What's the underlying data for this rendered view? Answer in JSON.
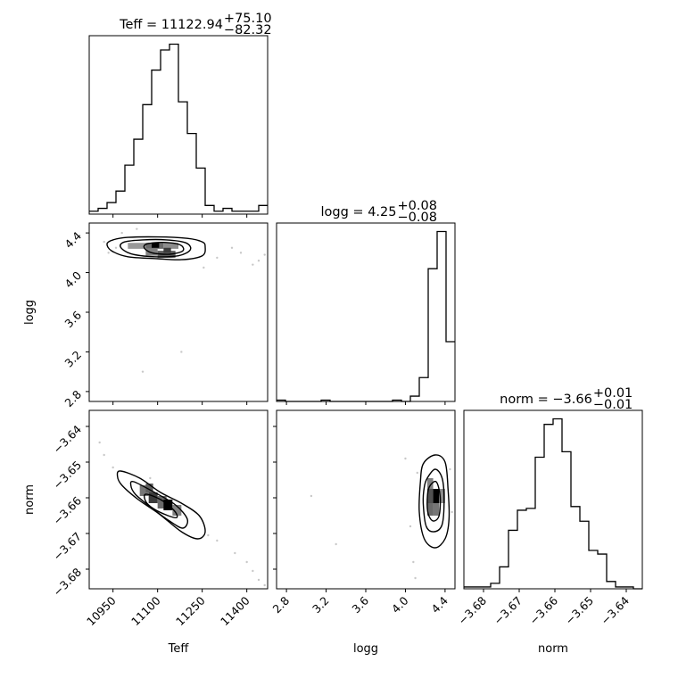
{
  "chart_data": {
    "type": "corner",
    "parameters": [
      "Teff",
      "logg",
      "norm"
    ],
    "titles": [
      {
        "param": "Teff",
        "prefix": "Teff = 11122.94",
        "plus": "+75.10",
        "minus": "−82.32"
      },
      {
        "param": "logg",
        "prefix": "logg = 4.25",
        "plus": "+0.08",
        "minus": "−0.08"
      },
      {
        "param": "norm",
        "prefix": "norm = −3.66",
        "plus": "+0.01",
        "minus": "−0.01"
      }
    ],
    "ranges": {
      "Teff": [
        10870,
        11470
      ],
      "logg": [
        2.7,
        4.5
      ],
      "norm": [
        -3.6855,
        -3.6355
      ]
    },
    "ticks": {
      "Teff": {
        "values": [
          10950,
          11100,
          11250,
          11400
        ],
        "labels": [
          "10950",
          "11100",
          "11250",
          "11400"
        ]
      },
      "logg": {
        "values": [
          2.8,
          3.2,
          3.6,
          4.0,
          4.4
        ],
        "labels": [
          "2.8",
          "3.2",
          "3.6",
          "4.0",
          "4.4"
        ]
      },
      "norm": {
        "values": [
          -3.68,
          -3.67,
          -3.66,
          -3.65,
          -3.64
        ],
        "labels": [
          "−3.68",
          "−3.67",
          "−3.66",
          "−3.65",
          "−3.64"
        ]
      }
    },
    "histograms": {
      "Teff": {
        "edges": [
          10870,
          10900,
          10930,
          10960,
          10990,
          11020,
          11050,
          11080,
          11110,
          11140,
          11170,
          11200,
          11230,
          11260,
          11290,
          11320,
          11350,
          11380,
          11410,
          11440,
          11470
        ],
        "counts": [
          1,
          2,
          4,
          8,
          17,
          26,
          38,
          50,
          57,
          59,
          39,
          28,
          16,
          3,
          1,
          2,
          1,
          1,
          1,
          3
        ]
      },
      "logg": {
        "edges": [
          2.7,
          2.79,
          2.88,
          2.97,
          3.06,
          3.15,
          3.24,
          3.33,
          3.42,
          3.51,
          3.6,
          3.69,
          3.78,
          3.87,
          3.96,
          4.05,
          4.14,
          4.23,
          4.32,
          4.41,
          4.5
        ],
        "counts": [
          1,
          0,
          0,
          0,
          0,
          1,
          0,
          0,
          0,
          0,
          0,
          0,
          0,
          1,
          0,
          4,
          18,
          100,
          128,
          45
        ]
      },
      "norm": {
        "edges": [
          -3.6855,
          -3.683,
          -3.6805,
          -3.678,
          -3.6755,
          -3.673,
          -3.6705,
          -3.668,
          -3.6655,
          -3.663,
          -3.6605,
          -3.658,
          -3.6555,
          -3.653,
          -3.6505,
          -3.648,
          -3.6455,
          -3.643,
          -3.6405,
          -3.638,
          -3.6355
        ],
        "counts": [
          1,
          1,
          1,
          3,
          12,
          32,
          43,
          44,
          72,
          90,
          93,
          75,
          45,
          37,
          21,
          19,
          4,
          1,
          1,
          0
        ]
      }
    },
    "hist2d": [
      {
        "x": "Teff",
        "y": "logg",
        "cells": [
          {
            "x": [
              11000,
              11060
            ],
            "y": [
              4.24,
              4.3
            ],
            "level": 0.35
          },
          {
            "x": [
              11060,
              11120
            ],
            "y": [
              4.24,
              4.3
            ],
            "level": 0.55
          },
          {
            "x": [
              11120,
              11170
            ],
            "y": [
              4.24,
              4.3
            ],
            "level": 0.4
          },
          {
            "x": [
              11060,
              11100
            ],
            "y": [
              4.17,
              4.24
            ],
            "level": 0.45
          },
          {
            "x": [
              11100,
              11160
            ],
            "y": [
              4.15,
              4.22
            ],
            "level": 0.6
          },
          {
            "x": [
              11080,
              11105
            ],
            "y": [
              4.25,
              4.3
            ],
            "level": 1.0
          },
          {
            "x": [
              11120,
              11145
            ],
            "y": [
              4.2,
              4.25
            ],
            "level": 0.75
          }
        ],
        "contours": [
          [
            [
              10950,
              4.33
            ],
            [
              11000,
              4.355
            ],
            [
              11100,
              4.36
            ],
            [
              11200,
              4.345
            ],
            [
              11250,
              4.31
            ],
            [
              11260,
              4.26
            ],
            [
              11250,
              4.17
            ],
            [
              11180,
              4.13
            ],
            [
              11100,
              4.14
            ],
            [
              11000,
              4.16
            ],
            [
              10945,
              4.22
            ],
            [
              10930,
              4.29
            ]
          ],
          [
            [
              10990,
              4.31
            ],
            [
              11050,
              4.33
            ],
            [
              11130,
              4.33
            ],
            [
              11195,
              4.3
            ],
            [
              11210,
              4.23
            ],
            [
              11170,
              4.17
            ],
            [
              11090,
              4.16
            ],
            [
              11010,
              4.19
            ],
            [
              10975,
              4.26
            ]
          ],
          [
            [
              11065,
              4.29
            ],
            [
              11120,
              4.305
            ],
            [
              11175,
              4.28
            ],
            [
              11185,
              4.22
            ],
            [
              11140,
              4.185
            ],
            [
              11080,
              4.2
            ],
            [
              11055,
              4.25
            ]
          ]
        ],
        "points": [
          [
            10920,
            4.31
          ],
          [
            10935,
            4.2
          ],
          [
            10960,
            4.25
          ],
          [
            11050,
            3.0
          ],
          [
            11180,
            3.2
          ],
          [
            11255,
            4.05
          ],
          [
            11300,
            4.15
          ],
          [
            11350,
            4.25
          ],
          [
            11380,
            4.2
          ],
          [
            11420,
            4.08
          ],
          [
            11440,
            4.12
          ],
          [
            11460,
            4.18
          ],
          [
            10980,
            4.4
          ],
          [
            11240,
            4.32
          ],
          [
            11030,
            4.44
          ]
        ]
      },
      {
        "x": "Teff",
        "y": "norm",
        "cells": [
          {
            "x": [
              11040,
              11070
            ],
            "y": [
              -3.6595,
              -3.6565
            ],
            "level": 0.5
          },
          {
            "x": [
              11070,
              11100
            ],
            "y": [
              -3.6615,
              -3.6585
            ],
            "level": 0.75
          },
          {
            "x": [
              11100,
              11130
            ],
            "y": [
              -3.663,
              -3.6595
            ],
            "level": 0.55
          },
          {
            "x": [
              11120,
              11150
            ],
            "y": [
              -3.6635,
              -3.6605
            ],
            "level": 1.0
          },
          {
            "x": [
              11150,
              11180
            ],
            "y": [
              -3.665,
              -3.662
            ],
            "level": 0.45
          },
          {
            "x": [
              11060,
              11085
            ],
            "y": [
              -3.6585,
              -3.656
            ],
            "level": 0.6
          }
        ],
        "contours": [
          [
            [
              10975,
              -3.6525
            ],
            [
              11040,
              -3.6545
            ],
            [
              11110,
              -3.6585
            ],
            [
              11180,
              -3.6615
            ],
            [
              11240,
              -3.665
            ],
            [
              11260,
              -3.6695
            ],
            [
              11235,
              -3.6715
            ],
            [
              11180,
              -3.6695
            ],
            [
              11105,
              -3.6645
            ],
            [
              11035,
              -3.6605
            ],
            [
              10980,
              -3.6565
            ],
            [
              10965,
              -3.654
            ]
          ],
          [
            [
              11020,
              -3.6555
            ],
            [
              11090,
              -3.6585
            ],
            [
              11160,
              -3.662
            ],
            [
              11200,
              -3.666
            ],
            [
              11185,
              -3.6685
            ],
            [
              11140,
              -3.6665
            ],
            [
              11075,
              -3.6625
            ],
            [
              11025,
              -3.659
            ],
            [
              11010,
              -3.6565
            ]
          ],
          [
            [
              11060,
              -3.659
            ],
            [
              11110,
              -3.6605
            ],
            [
              11155,
              -3.6635
            ],
            [
              11165,
              -3.6655
            ],
            [
              11135,
              -3.665
            ],
            [
              11085,
              -3.663
            ],
            [
              11060,
              -3.661
            ]
          ]
        ],
        "points": [
          [
            10905,
            -3.6445
          ],
          [
            10920,
            -3.648
          ],
          [
            10950,
            -3.6515
          ],
          [
            11270,
            -3.6705
          ],
          [
            11300,
            -3.672
          ],
          [
            11360,
            -3.6755
          ],
          [
            11400,
            -3.678
          ],
          [
            11420,
            -3.6805
          ],
          [
            11440,
            -3.683
          ],
          [
            11460,
            -3.6845
          ],
          [
            11075,
            -3.6545
          ]
        ]
      },
      {
        "x": "logg",
        "y": "norm",
        "cells": [
          {
            "x": [
              4.22,
              4.28
            ],
            "y": [
              -3.6575,
              -3.6545
            ],
            "level": 0.45
          },
          {
            "x": [
              4.22,
              4.28
            ],
            "y": [
              -3.6615,
              -3.6575
            ],
            "level": 0.65
          },
          {
            "x": [
              4.28,
              4.34
            ],
            "y": [
              -3.6615,
              -3.6575
            ],
            "level": 1.0
          },
          {
            "x": [
              4.22,
              4.28
            ],
            "y": [
              -3.665,
              -3.6615
            ],
            "level": 0.55
          },
          {
            "x": [
              4.28,
              4.34
            ],
            "y": [
              -3.665,
              -3.6615
            ],
            "level": 0.5
          },
          {
            "x": [
              4.34,
              4.4
            ],
            "y": [
              -3.6615,
              -3.6575
            ],
            "level": 0.4
          }
        ],
        "contours": [
          [
            [
              4.18,
              -3.6505
            ],
            [
              4.3,
              -3.648
            ],
            [
              4.4,
              -3.65
            ],
            [
              4.43,
              -3.6575
            ],
            [
              4.44,
              -3.666
            ],
            [
              4.4,
              -3.6715
            ],
            [
              4.3,
              -3.674
            ],
            [
              4.19,
              -3.6715
            ],
            [
              4.14,
              -3.664
            ],
            [
              4.15,
              -3.656
            ]
          ],
          [
            [
              4.22,
              -3.6545
            ],
            [
              4.3,
              -3.652
            ],
            [
              4.37,
              -3.6545
            ],
            [
              4.39,
              -3.6605
            ],
            [
              4.37,
              -3.6675
            ],
            [
              4.29,
              -3.6695
            ],
            [
              4.21,
              -3.668
            ],
            [
              4.18,
              -3.6615
            ],
            [
              4.19,
              -3.657
            ]
          ],
          [
            [
              4.24,
              -3.657
            ],
            [
              4.31,
              -3.6555
            ],
            [
              4.35,
              -3.6595
            ],
            [
              4.34,
              -3.665
            ],
            [
              4.28,
              -3.6665
            ],
            [
              4.23,
              -3.6645
            ],
            [
              4.22,
              -3.6605
            ]
          ]
        ],
        "points": [
          [
            3.05,
            -3.6595
          ],
          [
            3.3,
            -3.673
          ],
          [
            4.0,
            -3.649
          ],
          [
            4.05,
            -3.668
          ],
          [
            4.08,
            -3.678
          ],
          [
            4.1,
            -3.6825
          ],
          [
            4.45,
            -3.652
          ],
          [
            4.47,
            -3.664
          ],
          [
            4.12,
            -3.653
          ]
        ]
      }
    ],
    "grid": false,
    "legend": "none"
  }
}
